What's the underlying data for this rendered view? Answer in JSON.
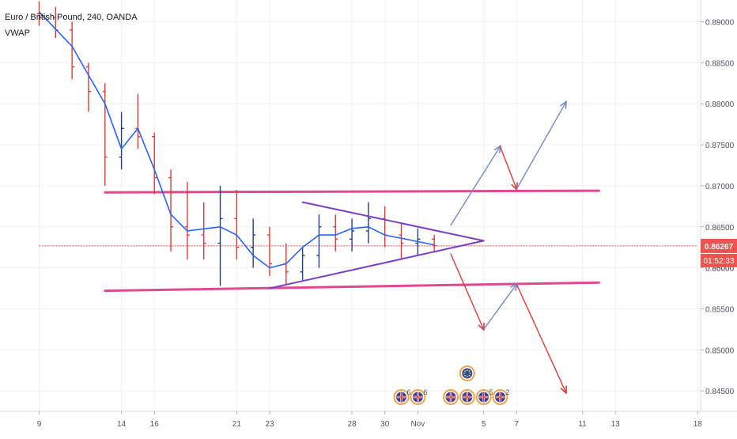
{
  "chart_data": {
    "type": "candlestick",
    "title": "Euro / British Pound, 240, OANDA",
    "indicator": "VWAP",
    "timeframe": "240",
    "y_axis": {
      "labels": [
        "0.89000",
        "0.88500",
        "0.88000",
        "0.87500",
        "0.87000",
        "0.86500",
        "0.86000",
        "0.85500",
        "0.85000",
        "0.84500"
      ],
      "values": [
        0.89,
        0.885,
        0.88,
        0.875,
        0.87,
        0.865,
        0.86,
        0.855,
        0.85,
        0.845
      ],
      "range": [
        0.8443,
        0.8925
      ]
    },
    "x_axis": {
      "labels": [
        "9",
        "14",
        "16",
        "21",
        "23",
        "28",
        "30",
        "Nov",
        "5",
        "7",
        "11",
        "13",
        "18"
      ],
      "dates": [
        "2019-10-09",
        "2019-10-14",
        "2019-10-16",
        "2019-10-21",
        "2019-10-23",
        "2019-10-28",
        "2019-10-30",
        "2019-11-01",
        "2019-11-05",
        "2019-11-07",
        "2019-11-11",
        "2019-11-13",
        "2019-11-18"
      ]
    },
    "current_price": {
      "value": 0.86267,
      "label": "0.86267",
      "countdown": "01:52:33"
    },
    "hidden_price_label": "0.86000",
    "colors": {
      "up": "#1e3f8f",
      "down": "#e53935",
      "vwap": "#2962ff",
      "support_resistance": "#e0488f",
      "triangle": "#7b3fc7",
      "bull_arrow": "#7788cc",
      "bear_arrow": "#e53935",
      "price_tag": "#ef5350",
      "grid": "#eef0f4"
    },
    "candles": [
      {
        "date": "2019-10-09",
        "open": 0.891,
        "high": 0.8925,
        "low": 0.8895,
        "close": 0.8905
      },
      {
        "date": "2019-10-10",
        "open": 0.8905,
        "high": 0.8918,
        "low": 0.888,
        "close": 0.889
      },
      {
        "date": "2019-10-11",
        "open": 0.889,
        "high": 0.89,
        "low": 0.883,
        "close": 0.8845
      },
      {
        "date": "2019-10-12",
        "open": 0.8845,
        "high": 0.885,
        "low": 0.879,
        "close": 0.8815
      },
      {
        "date": "2019-10-13",
        "open": 0.8815,
        "high": 0.8825,
        "low": 0.87,
        "close": 0.8735
      },
      {
        "date": "2019-10-14",
        "open": 0.8735,
        "high": 0.879,
        "low": 0.872,
        "close": 0.877
      },
      {
        "date": "2019-10-15",
        "open": 0.877,
        "high": 0.8812,
        "low": 0.8745,
        "close": 0.876
      },
      {
        "date": "2019-10-16",
        "open": 0.876,
        "high": 0.8765,
        "low": 0.869,
        "close": 0.871
      },
      {
        "date": "2019-10-17",
        "open": 0.871,
        "high": 0.872,
        "low": 0.862,
        "close": 0.865
      },
      {
        "date": "2019-10-18",
        "open": 0.865,
        "high": 0.8705,
        "low": 0.861,
        "close": 0.864
      },
      {
        "date": "2019-10-19",
        "open": 0.864,
        "high": 0.868,
        "low": 0.861,
        "close": 0.863
      },
      {
        "date": "2019-10-20",
        "open": 0.863,
        "high": 0.87,
        "low": 0.8578,
        "close": 0.866
      },
      {
        "date": "2019-10-21",
        "open": 0.866,
        "high": 0.8695,
        "low": 0.861,
        "close": 0.8625
      },
      {
        "date": "2019-10-22",
        "open": 0.8625,
        "high": 0.866,
        "low": 0.86,
        "close": 0.864
      },
      {
        "date": "2019-10-23",
        "open": 0.864,
        "high": 0.865,
        "low": 0.859,
        "close": 0.8605
      },
      {
        "date": "2019-10-24",
        "open": 0.8605,
        "high": 0.863,
        "low": 0.858,
        "close": 0.8595
      },
      {
        "date": "2019-10-25",
        "open": 0.8595,
        "high": 0.8625,
        "low": 0.8585,
        "close": 0.8615
      },
      {
        "date": "2019-10-26",
        "open": 0.8615,
        "high": 0.8665,
        "low": 0.86,
        "close": 0.865
      },
      {
        "date": "2019-10-27",
        "open": 0.865,
        "high": 0.8665,
        "low": 0.862,
        "close": 0.8635
      },
      {
        "date": "2019-10-28",
        "open": 0.8635,
        "high": 0.866,
        "low": 0.862,
        "close": 0.8645
      },
      {
        "date": "2019-10-29",
        "open": 0.8645,
        "high": 0.868,
        "low": 0.863,
        "close": 0.866
      },
      {
        "date": "2019-10-30",
        "open": 0.866,
        "high": 0.8675,
        "low": 0.8625,
        "close": 0.864
      },
      {
        "date": "2019-10-31",
        "open": 0.864,
        "high": 0.8655,
        "low": 0.861,
        "close": 0.863
      },
      {
        "date": "2019-11-01",
        "open": 0.863,
        "high": 0.8648,
        "low": 0.8615,
        "close": 0.8635
      },
      {
        "date": "2019-11-02",
        "open": 0.8635,
        "high": 0.864,
        "low": 0.862,
        "close": 0.8627
      }
    ],
    "vwap": [
      {
        "date": "2019-10-09",
        "value": 0.8912
      },
      {
        "date": "2019-10-11",
        "value": 0.887
      },
      {
        "date": "2019-10-13",
        "value": 0.88
      },
      {
        "date": "2019-10-14",
        "value": 0.8745
      },
      {
        "date": "2019-10-15",
        "value": 0.877
      },
      {
        "date": "2019-10-16",
        "value": 0.872
      },
      {
        "date": "2019-10-17",
        "value": 0.8665
      },
      {
        "date": "2019-10-18",
        "value": 0.8645
      },
      {
        "date": "2019-10-20",
        "value": 0.865
      },
      {
        "date": "2019-10-21",
        "value": 0.864
      },
      {
        "date": "2019-10-22",
        "value": 0.8615
      },
      {
        "date": "2019-10-23",
        "value": 0.86
      },
      {
        "date": "2019-10-24",
        "value": 0.8605
      },
      {
        "date": "2019-10-25",
        "value": 0.8625
      },
      {
        "date": "2019-10-26",
        "value": 0.864
      },
      {
        "date": "2019-10-27",
        "value": 0.864
      },
      {
        "date": "2019-10-28",
        "value": 0.8648
      },
      {
        "date": "2019-10-29",
        "value": 0.865
      },
      {
        "date": "2019-10-30",
        "value": 0.864
      },
      {
        "date": "2019-11-01",
        "value": 0.8632
      },
      {
        "date": "2019-11-02",
        "value": 0.8628
      }
    ],
    "drawings": {
      "lines": [
        {
          "name": "resistance-line",
          "role": "support_resistance",
          "width": 3,
          "from": {
            "date": "2019-10-13",
            "value": 0.8692
          },
          "to": {
            "date": "2019-11-12",
            "value": 0.8694
          }
        },
        {
          "name": "support-line",
          "role": "support_resistance",
          "width": 3,
          "from": {
            "date": "2019-10-13",
            "value": 0.8572
          },
          "to": {
            "date": "2019-11-12",
            "value": 0.8582
          }
        },
        {
          "name": "triangle-upper-line",
          "role": "triangle",
          "width": 2,
          "from": {
            "date": "2019-10-25",
            "value": 0.868
          },
          "to": {
            "date": "2019-11-05",
            "value": 0.8633
          }
        },
        {
          "name": "triangle-lower-line",
          "role": "triangle",
          "width": 2,
          "from": {
            "date": "2019-10-23",
            "value": 0.8575
          },
          "to": {
            "date": "2019-11-05",
            "value": 0.8633
          }
        },
        {
          "name": "current-price-line",
          "role": "price_tag",
          "width": 1,
          "dashed": true,
          "from": {
            "date": "2019-10-09",
            "value": 0.86267
          },
          "to": {
            "date": "2019-11-18",
            "value": 0.86267
          }
        }
      ],
      "paths": [
        {
          "name": "bullish-scenario-up-1",
          "role": "bull_arrow",
          "arrow": true,
          "points": [
            {
              "date": "2019-11-03",
              "value": 0.8652
            },
            {
              "date": "2019-11-06",
              "value": 0.8748
            }
          ]
        },
        {
          "name": "bullish-pullback",
          "role": "bear_arrow",
          "arrow": true,
          "points": [
            {
              "date": "2019-11-06",
              "value": 0.8748
            },
            {
              "date": "2019-11-07",
              "value": 0.8696
            }
          ]
        },
        {
          "name": "bullish-scenario-up-2",
          "role": "bull_arrow",
          "arrow": true,
          "points": [
            {
              "date": "2019-11-07",
              "value": 0.8696
            },
            {
              "date": "2019-11-10",
              "value": 0.8802
            }
          ]
        },
        {
          "name": "bearish-scenario-down-1",
          "role": "bear_arrow",
          "arrow": true,
          "points": [
            {
              "date": "2019-11-03",
              "value": 0.8617
            },
            {
              "date": "2019-11-05",
              "value": 0.8525
            }
          ]
        },
        {
          "name": "bearish-retest",
          "role": "bull_arrow",
          "arrow": true,
          "points": [
            {
              "date": "2019-11-05",
              "value": 0.8525
            },
            {
              "date": "2019-11-07",
              "value": 0.858
            }
          ]
        },
        {
          "name": "bearish-scenario-down-2",
          "role": "bear_arrow",
          "arrow": true,
          "points": [
            {
              "date": "2019-11-07",
              "value": 0.858
            },
            {
              "date": "2019-11-10",
              "value": 0.8448
            }
          ]
        }
      ]
    },
    "events": [
      {
        "date": "2019-10-31",
        "flag": "uk",
        "count": "6"
      },
      {
        "date": "2019-11-01",
        "flag": "uk",
        "count": "6"
      },
      {
        "date": "2019-11-03",
        "flag": "uk",
        "count": ""
      },
      {
        "date": "2019-11-04",
        "flag": "eu",
        "count": "",
        "stack": 1
      },
      {
        "date": "2019-11-04",
        "flag": "uk",
        "count": ""
      },
      {
        "date": "2019-11-05",
        "flag": "uk",
        "count": "5"
      },
      {
        "date": "2019-11-06",
        "flag": "uk",
        "count": "2"
      }
    ]
  }
}
